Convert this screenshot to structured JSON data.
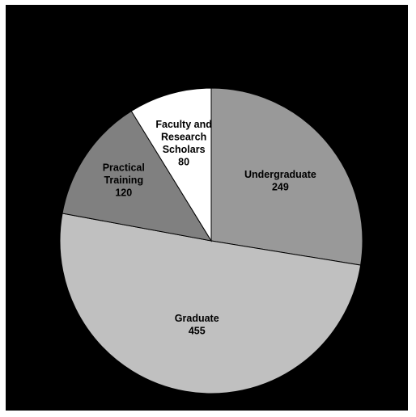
{
  "chart_data": {
    "type": "pie",
    "title": "",
    "slices": [
      {
        "label_lines": [
          "Undergraduate",
          "249"
        ],
        "category": "Undergraduate",
        "value": 249,
        "color": "#999999"
      },
      {
        "label_lines": [
          "Graduate",
          "455"
        ],
        "category": "Graduate",
        "value": 455,
        "color": "#c0c0c0"
      },
      {
        "label_lines": [
          "Practical",
          "Training",
          "120"
        ],
        "category": "Practical Training",
        "value": 120,
        "color": "#808080"
      },
      {
        "label_lines": [
          "Faculty and",
          "Research",
          "Scholars",
          "80"
        ],
        "category": "Faculty and Research Scholars",
        "value": 80,
        "color": "#ffffff"
      }
    ],
    "start_angle_deg": 0,
    "direction": "clockwise",
    "border_color": "#000000",
    "background_color": "#000000",
    "legend": "none"
  }
}
